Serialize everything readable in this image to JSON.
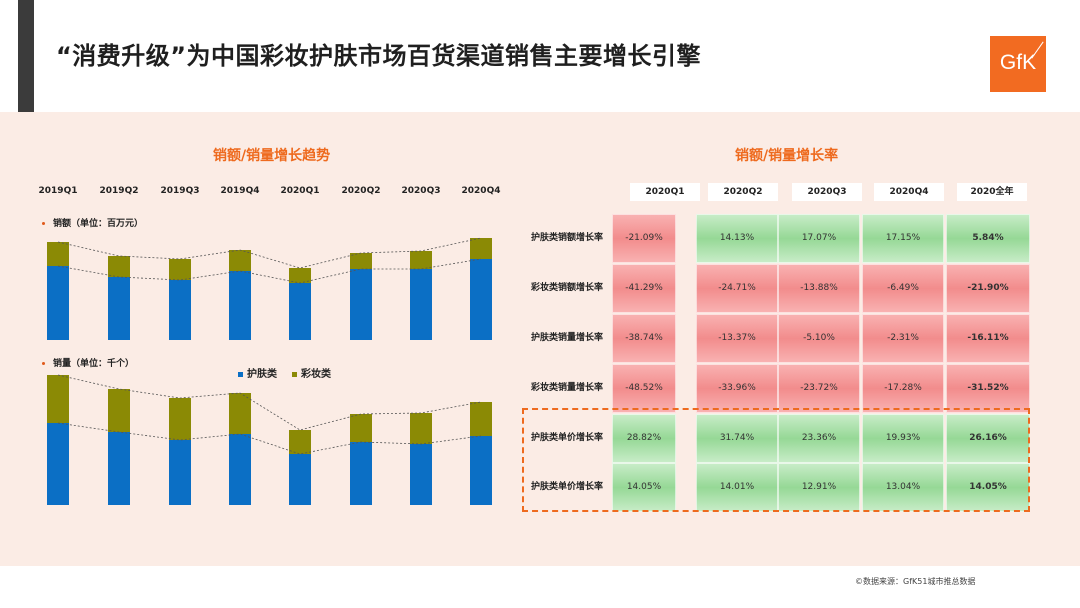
{
  "header": {
    "title": "“消费升级”为中国彩妆护肤市场百货渠道销售主要增长引擎",
    "logo_text": "GfK"
  },
  "colors": {
    "skincare": "#0b6fc5",
    "makeup": "#8b8a05",
    "accent": "#ee6a1e",
    "green": "#a6e0a6",
    "red": "#f7a0a0"
  },
  "left_panel": {
    "title": "销额/销量增长趋势",
    "quarters": [
      "2019Q1",
      "2019Q2",
      "2019Q3",
      "2019Q4",
      "2020Q1",
      "2020Q2",
      "2020Q3",
      "2020Q4"
    ],
    "sales_label": "销额（单位：百万元）",
    "volume_label": "销量（单位：千个）",
    "legend": [
      "护肤类",
      "彩妆类"
    ]
  },
  "right_panel": {
    "title": "销额/销量增长率",
    "columns": [
      "2020Q1",
      "2020Q2",
      "2020Q3",
      "2020Q4",
      "2020全年"
    ],
    "rows": [
      {
        "label": "护肤类销额增长率",
        "values": [
          "-21.09%",
          "14.13%",
          "17.07%",
          "17.15%",
          "5.84%"
        ]
      },
      {
        "label": "彩妆类销额增长率",
        "values": [
          "-41.29%",
          "-24.71%",
          "-13.88%",
          "-6.49%",
          "-21.90%"
        ]
      },
      {
        "label": "护肤类销量增长率",
        "values": [
          "-38.74%",
          "-13.37%",
          "-5.10%",
          "-2.31%",
          "-16.11%"
        ]
      },
      {
        "label": "彩妆类销量增长率",
        "values": [
          "-48.52%",
          "-33.96%",
          "-23.72%",
          "-17.28%",
          "-31.52%"
        ]
      },
      {
        "label": "护肤类单价增长率",
        "values": [
          "28.82%",
          "31.74%",
          "23.36%",
          "19.93%",
          "26.16%"
        ]
      },
      {
        "label": "护肤类单价增长率",
        "values": [
          "14.05%",
          "14.01%",
          "12.91%",
          "13.04%",
          "14.05%"
        ]
      }
    ]
  },
  "source": "©数据来源：GfK51城市推总数据",
  "chart_data": [
    {
      "type": "bar",
      "stacked": true,
      "categories": [
        "2019Q1",
        "2019Q2",
        "2019Q3",
        "2019Q4",
        "2020Q1",
        "2020Q2",
        "2020Q3",
        "2020Q4"
      ],
      "ylabel": "销额（单位：百万元）",
      "ylim": [
        0,
        112
      ],
      "series": [
        {
          "name": "护肤类",
          "values": [
            74,
            63,
            60,
            69,
            57,
            71,
            71,
            81
          ]
        },
        {
          "name": "彩妆类",
          "values": [
            24,
            21,
            21,
            21,
            15,
            16,
            18,
            21
          ]
        }
      ]
    },
    {
      "type": "bar",
      "stacked": true,
      "categories": [
        "2019Q1",
        "2019Q2",
        "2019Q3",
        "2019Q4",
        "2020Q1",
        "2020Q2",
        "2020Q3",
        "2020Q4"
      ],
      "ylabel": "销量（单位：千个）",
      "ylim": [
        0,
        134
      ],
      "series": [
        {
          "name": "护肤类",
          "values": [
            82,
            73,
            65,
            71,
            51,
            63,
            61,
            69
          ]
        },
        {
          "name": "彩妆类",
          "values": [
            48,
            43,
            42,
            41,
            24,
            28,
            31,
            34
          ]
        }
      ]
    }
  ]
}
